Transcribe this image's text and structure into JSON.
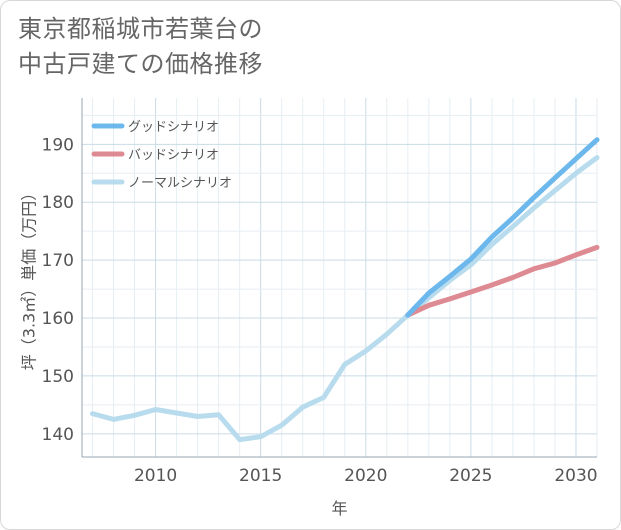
{
  "title": {
    "line1": "東京都稲城市若葉台の",
    "line2": "中古戸建ての価格推移"
  },
  "chart_data": {
    "type": "line",
    "xlabel": "年",
    "ylabel": "坪（3.3㎡）単価（万円）",
    "xlim": [
      2006.5,
      2031
    ],
    "ylim": [
      136,
      198
    ],
    "x_ticks": [
      2010,
      2015,
      2020,
      2025,
      2030
    ],
    "y_ticks": [
      140,
      150,
      160,
      170,
      180,
      190
    ],
    "grid": true,
    "legend_position": "top-left",
    "series": [
      {
        "name": "グッドシナリオ",
        "color": "#6cb8ec",
        "x": [
          2022,
          2023,
          2024,
          2025,
          2026,
          2027,
          2028,
          2029,
          2030,
          2031
        ],
        "values": [
          160.5,
          164.3,
          167.2,
          170.2,
          174.0,
          177.3,
          180.8,
          184.2,
          187.5,
          190.8
        ]
      },
      {
        "name": "バッドシナリオ",
        "color": "#de8a93",
        "x": [
          2022,
          2023,
          2024,
          2025,
          2026,
          2027,
          2028,
          2029,
          2030,
          2031
        ],
        "values": [
          160.5,
          162.2,
          163.3,
          164.5,
          165.7,
          167.0,
          168.5,
          169.5,
          170.9,
          172.2
        ]
      },
      {
        "name": "ノーマルシナリオ",
        "color": "#b8dced",
        "x": [
          2007,
          2008,
          2009,
          2010,
          2011,
          2012,
          2013,
          2014,
          2015,
          2016,
          2017,
          2018,
          2019,
          2020,
          2021,
          2022,
          2023,
          2024,
          2025,
          2026,
          2027,
          2028,
          2029,
          2030,
          2031
        ],
        "values": [
          143.5,
          142.5,
          143.2,
          144.2,
          143.6,
          143.0,
          143.3,
          139.0,
          139.5,
          141.5,
          144.6,
          146.3,
          152.0,
          154.3,
          157.2,
          160.5,
          163.5,
          166.5,
          169.2,
          172.7,
          175.8,
          179.0,
          182.0,
          185.0,
          187.7
        ]
      }
    ]
  }
}
